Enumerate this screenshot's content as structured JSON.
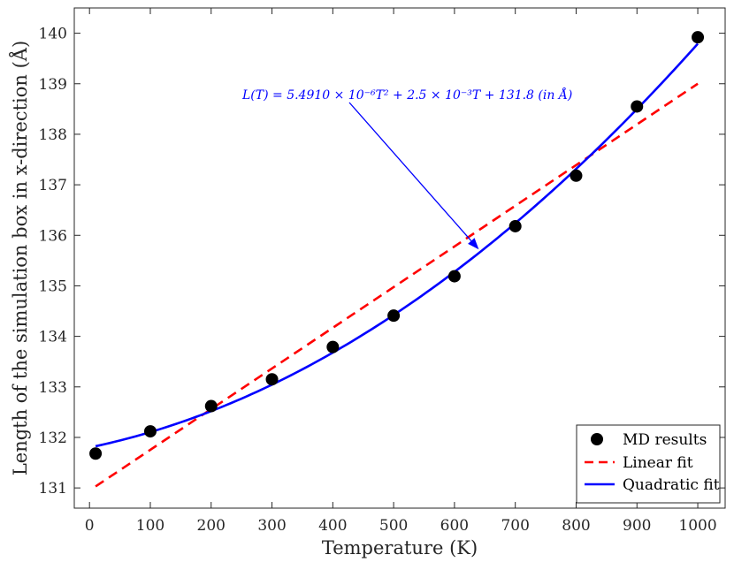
{
  "chart_data": {
    "type": "line",
    "title": "",
    "xlabel": "Temperature (K)",
    "ylabel": "Length of the simulation box in x-direction (Å)",
    "xlim": [
      -25,
      1045
    ],
    "ylim": [
      130.6,
      140.5
    ],
    "xticks": [
      0,
      100,
      200,
      300,
      400,
      500,
      600,
      700,
      800,
      900,
      1000
    ],
    "yticks": [
      131,
      132,
      133,
      134,
      135,
      136,
      137,
      138,
      139,
      140
    ],
    "grid": false,
    "legend_position": "bottom-right",
    "series": [
      {
        "name": "MD results",
        "kind": "scatter",
        "color": "#000000",
        "x": [
          10,
          100,
          200,
          300,
          400,
          500,
          600,
          700,
          800,
          900,
          1000
        ],
        "y": [
          131.68,
          132.12,
          132.62,
          133.15,
          133.79,
          134.41,
          135.19,
          136.18,
          137.18,
          138.55,
          139.92
        ]
      },
      {
        "name": "Linear fit",
        "kind": "dashed-line",
        "color": "#ff0000",
        "x": [
          10,
          1000
        ],
        "y": [
          131.03,
          139.0
        ]
      },
      {
        "name": "Quadratic fit",
        "kind": "line",
        "color": "#0000ff",
        "x": [
          10,
          1000
        ],
        "y": [
          131.825,
          139.791
        ],
        "coefficients": {
          "a": 5.491e-06,
          "b": 0.0025,
          "c": 131.8
        }
      }
    ],
    "annotation": {
      "text": "L(T) = 5.4910 × 10⁻⁶T² + 2.5 × 10⁻³T + 131.8 (in Å)",
      "color": "#0000ff",
      "arrow_to": {
        "x": 640,
        "y": 135.72
      }
    }
  }
}
